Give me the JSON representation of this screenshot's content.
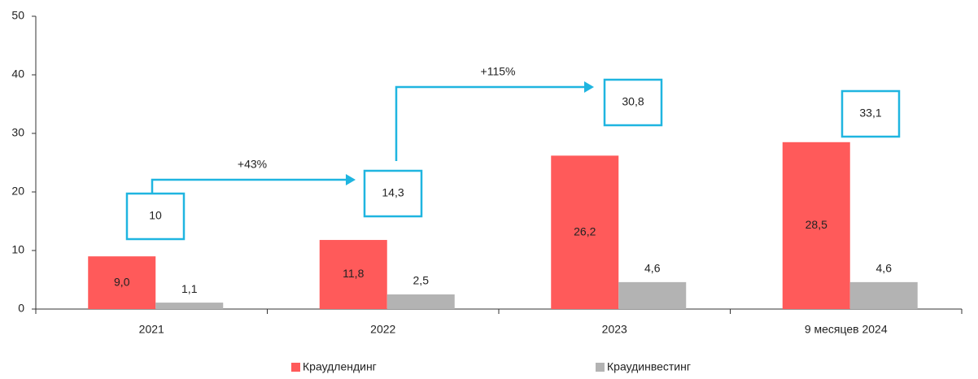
{
  "chart_data": {
    "type": "bar",
    "categories": [
      "2021",
      "2022",
      "2023",
      "9 месяцев 2024"
    ],
    "series": [
      {
        "name": "Краудлендинг",
        "color": "#ff5a5a",
        "values": [
          9.0,
          11.8,
          26.2,
          28.5
        ],
        "value_labels": [
          "9,0",
          "11,8",
          "26,2",
          "28,5"
        ]
      },
      {
        "name": "Краудинвестинг",
        "color": "#b3b3b3",
        "values": [
          1.1,
          2.5,
          4.6,
          4.6
        ],
        "value_labels": [
          "1,1",
          "2,5",
          "4,6",
          "4,6"
        ]
      }
    ],
    "totals": {
      "values": [
        10,
        14.3,
        30.8,
        33.1
      ],
      "value_labels": [
        "10",
        "14,3",
        "30,8",
        "33,1"
      ]
    },
    "annotations": [
      "+43%",
      "+115%"
    ],
    "ylim": [
      0,
      50
    ],
    "yticks": [
      0,
      10,
      20,
      30,
      40,
      50
    ],
    "grid": false,
    "legend": "bottom"
  }
}
